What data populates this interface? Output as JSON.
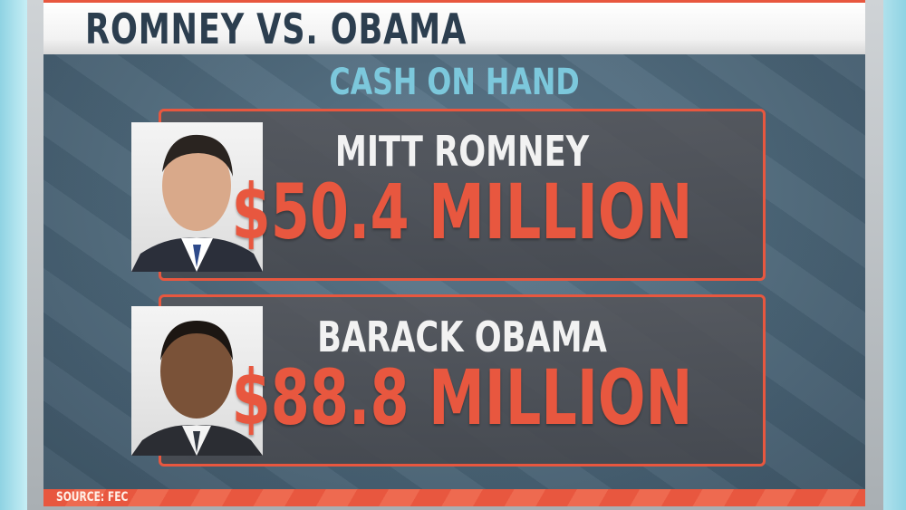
{
  "header": {
    "title": "ROMNEY VS. OBAMA",
    "subtitle": "CASH ON HAND"
  },
  "candidates": [
    {
      "name": "MITT ROMNEY",
      "amount": "$50.4 MILLION"
    },
    {
      "name": "BARACK OBAMA",
      "amount": "$88.8 MILLION"
    }
  ],
  "footer": {
    "source": "SOURCE: FEC"
  },
  "colors": {
    "accent": "#e8573f",
    "title": "#2c3e4f",
    "subtitle": "#7cc8dc",
    "panel": "#4a6476"
  }
}
